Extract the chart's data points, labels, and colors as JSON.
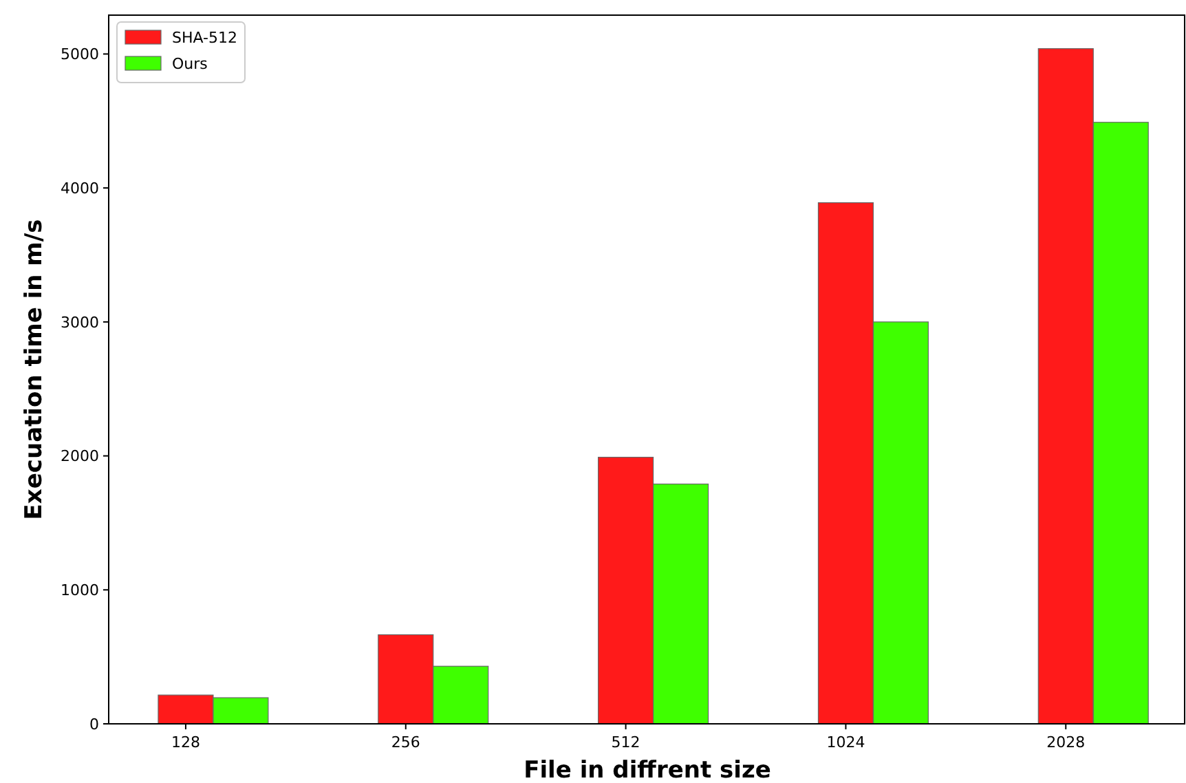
{
  "chart_data": {
    "type": "bar",
    "xlabel": "File in diffrent size",
    "ylabel": "Execuation time in m/s",
    "categories": [
      "128",
      "256",
      "512",
      "1024",
      "2028"
    ],
    "series": [
      {
        "name": "SHA-512",
        "color": "#ff1a1a",
        "values": [
          215,
          665,
          1990,
          3890,
          5040
        ]
      },
      {
        "name": "Ours",
        "color": "#3fff00",
        "values": [
          195,
          430,
          1790,
          3000,
          4490
        ]
      }
    ],
    "ylim": [
      0,
      5290
    ],
    "yticks": [
      0,
      1000,
      2000,
      3000,
      4000,
      5000
    ],
    "grid": false,
    "legend": "top left"
  }
}
